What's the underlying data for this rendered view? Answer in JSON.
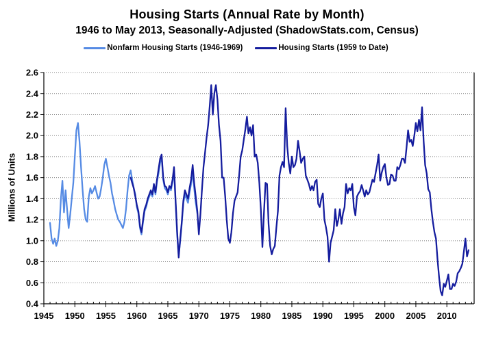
{
  "header": {
    "title": "Housing Starts (Annual Rate by Month)",
    "subtitle": "1946 to May 2013, Seasonally-Adjusted (ShadowStats.com, Census)"
  },
  "legend": [
    {
      "label": "Nonfarm Housing Starts (1946-1969)",
      "color": "#568BE4"
    },
    {
      "label": "Housing Starts (1959 to Date)",
      "color": "#151D9E"
    }
  ],
  "colors": {
    "grid": "#808080",
    "axis": "#000000",
    "background": "#ffffff"
  },
  "chart_data": {
    "type": "line",
    "title": "Housing Starts (Annual Rate by Month)",
    "subtitle": "1946 to May 2013, Seasonally-Adjusted (ShadowStats.com, Census)",
    "xlabel": "",
    "ylabel": "Millions of Units",
    "xlim": [
      1945,
      2014.4
    ],
    "ylim": [
      0.4,
      2.6
    ],
    "x_ticks": [
      1945,
      1950,
      1955,
      1960,
      1965,
      1970,
      1975,
      1980,
      1985,
      1990,
      1995,
      2000,
      2005,
      2010
    ],
    "x_minor_tick_step": 1,
    "y_ticks": [
      0.4,
      0.6,
      0.8,
      1.0,
      1.2,
      1.4,
      1.6,
      1.8,
      2.0,
      2.2,
      2.4,
      2.6
    ],
    "grid": "horizontal-dotted",
    "legend_position": "top",
    "series": [
      {
        "name": "Nonfarm Housing Starts (1946-1969)",
        "color": "#568BE4",
        "x_start": 1946.0,
        "x_step": 0.25,
        "values": [
          1.17,
          1.02,
          0.97,
          1.02,
          0.95,
          1.0,
          1.12,
          1.4,
          1.57,
          1.27,
          1.48,
          1.3,
          1.12,
          1.25,
          1.4,
          1.55,
          1.8,
          2.05,
          2.12,
          1.95,
          1.7,
          1.48,
          1.3,
          1.2,
          1.18,
          1.42,
          1.5,
          1.45,
          1.48,
          1.52,
          1.46,
          1.4,
          1.42,
          1.5,
          1.6,
          1.72,
          1.78,
          1.7,
          1.62,
          1.55,
          1.45,
          1.38,
          1.3,
          1.25,
          1.2,
          1.18,
          1.15,
          1.12,
          1.18,
          1.3,
          1.48,
          1.62,
          1.67,
          1.58,
          1.5,
          1.44,
          1.32,
          1.26,
          1.12,
          1.06,
          1.18,
          1.28,
          1.32,
          1.38,
          1.42,
          1.46,
          1.42,
          1.52,
          1.44,
          1.56,
          1.64,
          1.74,
          1.8,
          1.58,
          1.5,
          1.48,
          1.44,
          1.5,
          1.48,
          1.56,
          1.66,
          1.36,
          1.05,
          0.86,
          1.0,
          1.16,
          1.36,
          1.44,
          1.4,
          1.36,
          1.46,
          1.54,
          1.66,
          1.5,
          1.36,
          1.26
        ]
      },
      {
        "name": "Housing Starts (1959 to Date)",
        "color": "#151D9E",
        "x_start": 1959.0,
        "x_step": 0.25,
        "values": [
          1.6,
          1.55,
          1.5,
          1.42,
          1.34,
          1.28,
          1.14,
          1.08,
          1.2,
          1.3,
          1.34,
          1.4,
          1.44,
          1.48,
          1.44,
          1.54,
          1.46,
          1.58,
          1.68,
          1.78,
          1.82,
          1.6,
          1.52,
          1.51,
          1.46,
          1.52,
          1.5,
          1.58,
          1.7,
          1.38,
          1.08,
          0.84,
          1.02,
          1.18,
          1.38,
          1.48,
          1.44,
          1.4,
          1.5,
          1.58,
          1.72,
          1.55,
          1.42,
          1.28,
          1.06,
          1.25,
          1.48,
          1.7,
          1.84,
          1.98,
          2.1,
          2.28,
          2.48,
          2.2,
          2.4,
          2.48,
          2.34,
          2.1,
          1.95,
          1.6,
          1.6,
          1.42,
          1.2,
          1.02,
          0.98,
          1.08,
          1.26,
          1.38,
          1.42,
          1.46,
          1.62,
          1.8,
          1.86,
          1.96,
          2.06,
          2.18,
          2.02,
          2.08,
          2.0,
          2.1,
          1.8,
          1.82,
          1.74,
          1.55,
          1.3,
          0.94,
          1.26,
          1.55,
          1.54,
          1.16,
          0.95,
          0.87,
          0.92,
          0.95,
          1.12,
          1.28,
          1.62,
          1.7,
          1.75,
          1.7,
          2.26,
          1.9,
          1.74,
          1.64,
          1.8,
          1.7,
          1.72,
          1.78,
          1.95,
          1.85,
          1.74,
          1.78,
          1.8,
          1.62,
          1.58,
          1.54,
          1.48,
          1.52,
          1.48,
          1.56,
          1.58,
          1.35,
          1.32,
          1.4,
          1.45,
          1.2,
          1.13,
          1.04,
          0.8,
          0.98,
          1.04,
          1.1,
          1.3,
          1.14,
          1.2,
          1.3,
          1.16,
          1.26,
          1.32,
          1.54,
          1.45,
          1.5,
          1.48,
          1.54,
          1.32,
          1.24,
          1.42,
          1.45,
          1.47,
          1.53,
          1.48,
          1.42,
          1.48,
          1.44,
          1.46,
          1.52,
          1.58,
          1.56,
          1.64,
          1.72,
          1.82,
          1.57,
          1.65,
          1.7,
          1.73,
          1.6,
          1.53,
          1.54,
          1.63,
          1.62,
          1.57,
          1.57,
          1.7,
          1.68,
          1.72,
          1.78,
          1.78,
          1.74,
          1.89,
          2.05,
          1.94,
          1.96,
          1.9,
          2.0,
          2.12,
          2.04,
          2.15,
          2.05,
          2.27,
          1.95,
          1.72,
          1.64,
          1.49,
          1.46,
          1.3,
          1.18,
          1.08,
          1.02,
          0.82,
          0.65,
          0.52,
          0.48,
          0.59,
          0.56,
          0.62,
          0.68,
          0.54,
          0.54,
          0.59,
          0.57,
          0.61,
          0.69,
          0.71,
          0.74,
          0.78,
          0.9,
          1.02,
          0.85,
          0.91
        ]
      }
    ]
  }
}
